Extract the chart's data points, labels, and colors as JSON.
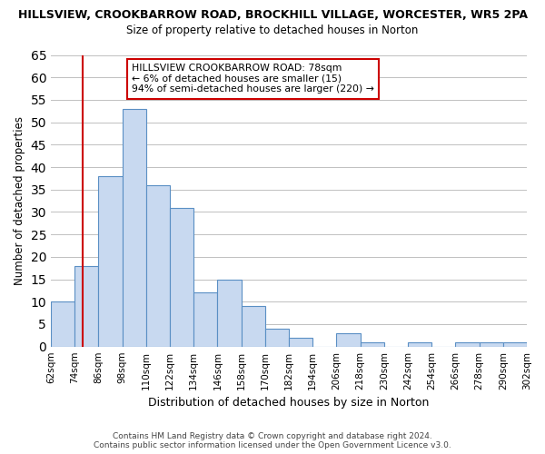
{
  "title1": "HILLSVIEW, CROOKBARROW ROAD, BROCKHILL VILLAGE, WORCESTER, WR5 2PA",
  "title2": "Size of property relative to detached houses in Norton",
  "xlabel": "Distribution of detached houses by size in Norton",
  "ylabel": "Number of detached properties",
  "bar_edges": [
    62,
    74,
    86,
    98,
    110,
    122,
    134,
    146,
    158,
    170,
    182,
    194,
    206,
    218,
    230,
    242,
    254,
    266,
    278,
    290,
    302
  ],
  "bar_heights": [
    10,
    18,
    38,
    53,
    36,
    31,
    12,
    15,
    9,
    4,
    2,
    0,
    3,
    1,
    0,
    1,
    0,
    1,
    1,
    1
  ],
  "tick_labels": [
    "62sqm",
    "74sqm",
    "86sqm",
    "98sqm",
    "110sqm",
    "122sqm",
    "134sqm",
    "146sqm",
    "158sqm",
    "170sqm",
    "182sqm",
    "194sqm",
    "206sqm",
    "218sqm",
    "230sqm",
    "242sqm",
    "254sqm",
    "266sqm",
    "278sqm",
    "290sqm",
    "302sqm"
  ],
  "bar_color": "#c8d9f0",
  "bar_edge_color": "#5a8fc4",
  "property_line_x": 78,
  "property_line_color": "#cc0000",
  "ylim": [
    0,
    65
  ],
  "yticks": [
    0,
    5,
    10,
    15,
    20,
    25,
    30,
    35,
    40,
    45,
    50,
    55,
    60,
    65
  ],
  "annotation_title": "HILLSVIEW CROOKBARROW ROAD: 78sqm",
  "annotation_line1": "← 6% of detached houses are smaller (15)",
  "annotation_line2": "94% of semi-detached houses are larger (220) →",
  "annotation_box_color": "#ffffff",
  "annotation_box_edge_color": "#cc0000",
  "footer1": "Contains HM Land Registry data © Crown copyright and database right 2024.",
  "footer2": "Contains public sector information licensed under the Open Government Licence v3.0.",
  "bg_color": "#ffffff",
  "grid_color": "#c0c0c0"
}
